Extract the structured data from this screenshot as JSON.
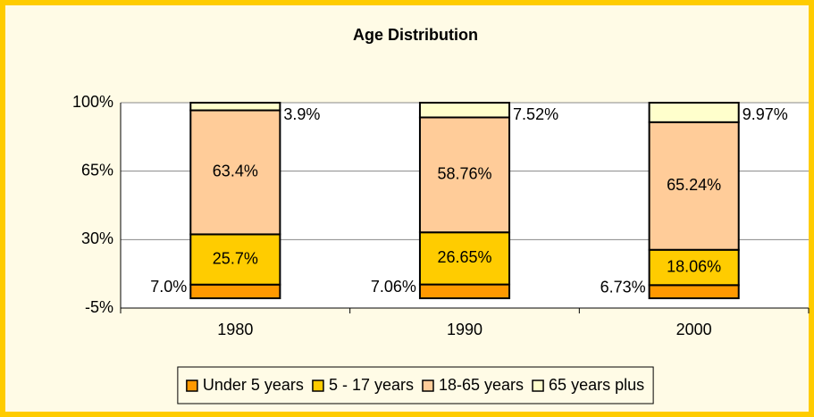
{
  "chart_data": {
    "type": "stacked_bar",
    "title": "Age Distribution",
    "categories": [
      "1980",
      "1990",
      "2000"
    ],
    "series": [
      {
        "name": "Under 5 years",
        "color": "#ff9900",
        "values": [
          7.0,
          7.06,
          6.73
        ],
        "value_labels": [
          "7.0%",
          "7.06%",
          "6.73%"
        ]
      },
      {
        "name": "5 - 17 years",
        "color": "#ffcc00",
        "values": [
          25.7,
          26.65,
          18.06
        ],
        "value_labels": [
          "25.7%",
          "26.65%",
          "18.06%"
        ]
      },
      {
        "name": "18-65 years",
        "color": "#ffcc99",
        "values": [
          63.4,
          58.76,
          65.24
        ],
        "value_labels": [
          "63.4%",
          "58.76%",
          "65.24%"
        ]
      },
      {
        "name": "65 years plus",
        "color": "#ffffcc",
        "values": [
          3.9,
          7.52,
          9.97
        ],
        "value_labels": [
          "3.9%",
          "7.52%",
          "9.97%"
        ]
      }
    ],
    "ylim": [
      -5,
      100
    ],
    "yticks": [
      {
        "value": -5,
        "label": "-5%"
      },
      {
        "value": 30,
        "label": "30%"
      },
      {
        "value": 65,
        "label": "65%"
      },
      {
        "value": 100,
        "label": "100%"
      }
    ],
    "grid": true,
    "legend": "bottom"
  }
}
